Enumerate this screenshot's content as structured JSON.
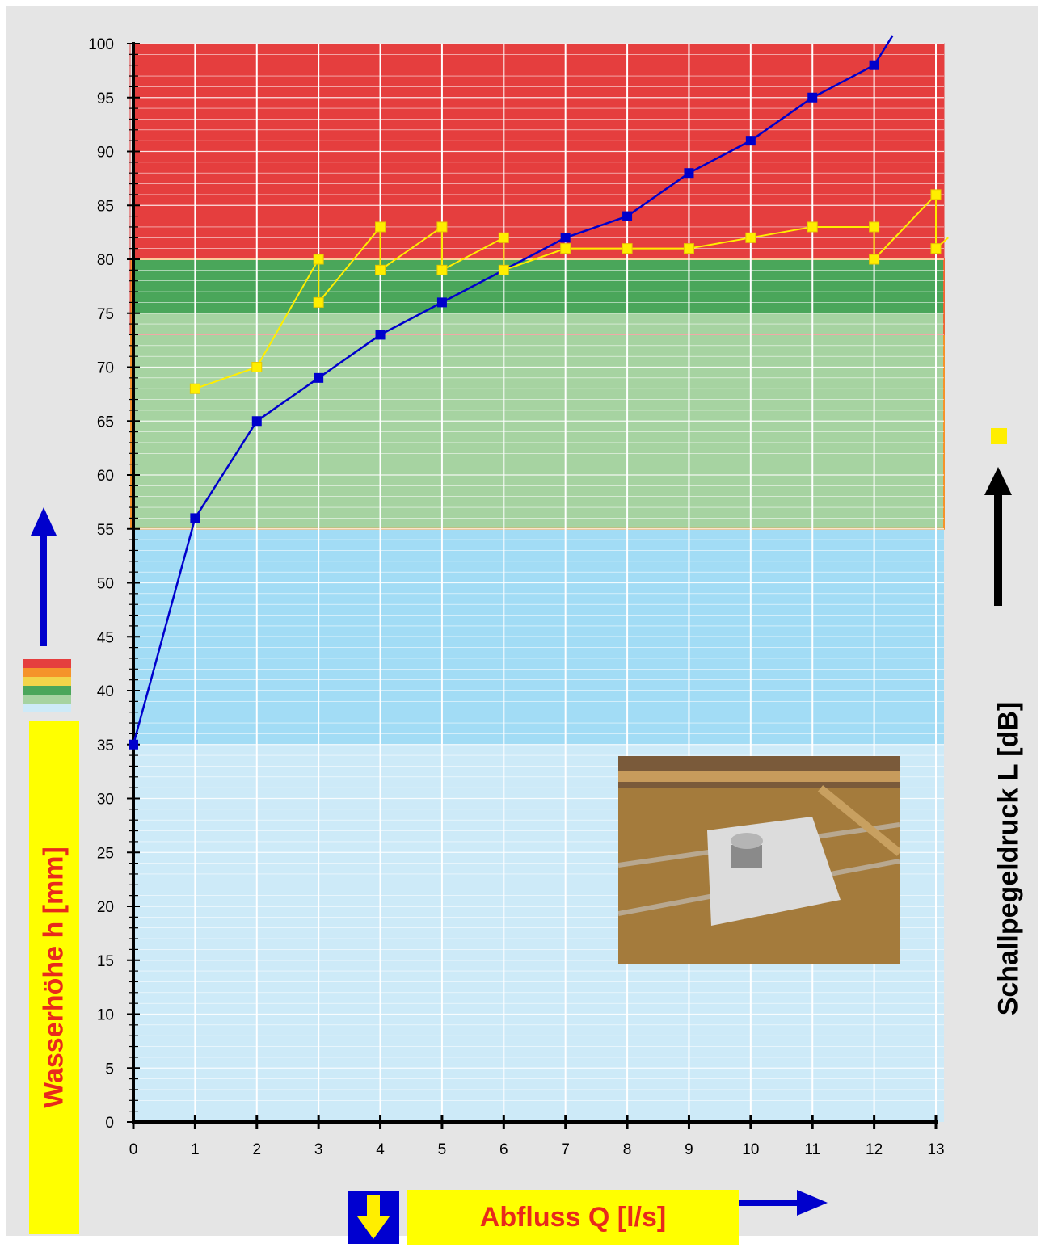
{
  "chart_data": {
    "type": "line",
    "xlabel": "Abfluss Q [l/s]",
    "ylabel": "Wasserhöhe h [mm]",
    "y2label": "Schallpegeldruck L [dB]",
    "xlim": [
      0,
      13
    ],
    "ylim": [
      0,
      100
    ],
    "xticks": [
      0,
      1,
      2,
      3,
      4,
      5,
      6,
      7,
      8,
      9,
      10,
      11,
      12,
      13
    ],
    "yticks": [
      0,
      5,
      10,
      15,
      20,
      25,
      30,
      35,
      40,
      45,
      50,
      55,
      60,
      65,
      70,
      75,
      80,
      85,
      90,
      95,
      100
    ],
    "grid": true,
    "bands": [
      {
        "from": 0,
        "to": 35,
        "color": "#cdeaf8"
      },
      {
        "from": 35,
        "to": 55,
        "color": "#a2dcf5"
      },
      {
        "from": 55,
        "to": 75,
        "color": "#a6d3a1"
      },
      {
        "from": 75,
        "to": 80,
        "color": "#4aa65a"
      },
      {
        "from": 80,
        "to": 100,
        "color": "#e53e3e"
      }
    ],
    "series": [
      {
        "color": "#0000cc",
        "points": [
          [
            0,
            35
          ],
          [
            1,
            56
          ],
          [
            2,
            65
          ],
          [
            3,
            69
          ],
          [
            4,
            73
          ],
          [
            5,
            76
          ],
          [
            6,
            79
          ],
          [
            7,
            82
          ],
          [
            8,
            84
          ],
          [
            9,
            88
          ],
          [
            10,
            91
          ],
          [
            11,
            95
          ],
          [
            12,
            98
          ],
          [
            12.3,
            101
          ]
        ]
      },
      {
        "color": "#ffee00",
        "points": [
          [
            1,
            68
          ],
          [
            2,
            70
          ],
          [
            3,
            80
          ],
          [
            3,
            76
          ],
          [
            4,
            83
          ],
          [
            4,
            79
          ],
          [
            5,
            83
          ],
          [
            5,
            79
          ],
          [
            6,
            82
          ],
          [
            6,
            79
          ],
          [
            7,
            81
          ],
          [
            8,
            81
          ],
          [
            9,
            81
          ],
          [
            10,
            82
          ],
          [
            11,
            83
          ],
          [
            12,
            83
          ],
          [
            12,
            80
          ],
          [
            13,
            86
          ],
          [
            13,
            81
          ],
          [
            13.2,
            82
          ]
        ]
      }
    ],
    "legend_swatches": [
      "#e53e3e",
      "#f5932a",
      "#f2d44a",
      "#4aa65a",
      "#a6d3a1",
      "#cdeaf8"
    ]
  },
  "colors": {
    "label_text": "#e8291c",
    "label_box": "#ffff00",
    "arrow_blue": "#0000cc",
    "arrow_black": "#000000",
    "frame_orange": "#f5932a"
  },
  "icons": {
    "down": "down-arrow-icon",
    "up": "up-arrow-icon",
    "right": "right-arrow-icon"
  }
}
